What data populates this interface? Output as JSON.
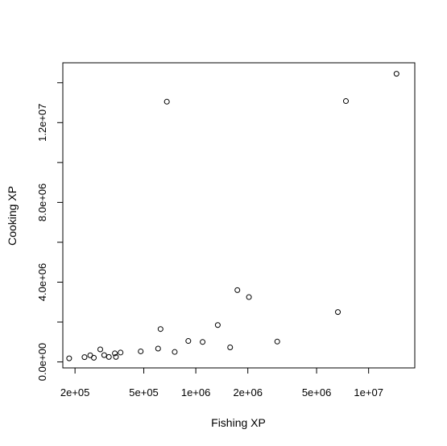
{
  "chart_data": {
    "type": "scatter",
    "title": "",
    "xlabel": "Fishing XP",
    "ylabel": "Cooking XP",
    "xscale": "log",
    "xlim": [
      170000,
      18500000
    ],
    "ylim": [
      -300000,
      15000000
    ],
    "grid": false,
    "x_ticks": [
      {
        "value": 200000,
        "label": "2e+05"
      },
      {
        "value": 500000,
        "label": "5e+05"
      },
      {
        "value": 1000000,
        "label": "1e+06"
      },
      {
        "value": 2000000,
        "label": "2e+06"
      },
      {
        "value": 5000000,
        "label": "5e+06"
      },
      {
        "value": 10000000,
        "label": "1e+07"
      }
    ],
    "y_ticks": [
      {
        "value": 0,
        "label": "0.0e+00"
      },
      {
        "value": 2000000,
        "label": ""
      },
      {
        "value": 4000000,
        "label": "4.0e+06"
      },
      {
        "value": 6000000,
        "label": ""
      },
      {
        "value": 8000000,
        "label": "8.0e+06"
      },
      {
        "value": 10000000,
        "label": ""
      },
      {
        "value": 12000000,
        "label": "1.2e+07"
      },
      {
        "value": 14000000,
        "label": ""
      }
    ],
    "points": [
      {
        "x": 185000,
        "y": 180000
      },
      {
        "x": 227000,
        "y": 240000
      },
      {
        "x": 245000,
        "y": 330000
      },
      {
        "x": 257000,
        "y": 210000
      },
      {
        "x": 280000,
        "y": 630000
      },
      {
        "x": 295000,
        "y": 340000
      },
      {
        "x": 314000,
        "y": 250000
      },
      {
        "x": 340000,
        "y": 430000
      },
      {
        "x": 345000,
        "y": 250000
      },
      {
        "x": 367000,
        "y": 470000
      },
      {
        "x": 480000,
        "y": 530000
      },
      {
        "x": 605000,
        "y": 670000
      },
      {
        "x": 625000,
        "y": 1650000
      },
      {
        "x": 680000,
        "y": 13050000
      },
      {
        "x": 755000,
        "y": 500000
      },
      {
        "x": 905000,
        "y": 1050000
      },
      {
        "x": 1095000,
        "y": 1000000
      },
      {
        "x": 1340000,
        "y": 1850000
      },
      {
        "x": 1580000,
        "y": 730000
      },
      {
        "x": 1740000,
        "y": 3600000
      },
      {
        "x": 2030000,
        "y": 3250000
      },
      {
        "x": 2960000,
        "y": 1020000
      },
      {
        "x": 6640000,
        "y": 2500000
      },
      {
        "x": 7390000,
        "y": 13080000
      },
      {
        "x": 14500000,
        "y": 14450000
      }
    ]
  }
}
